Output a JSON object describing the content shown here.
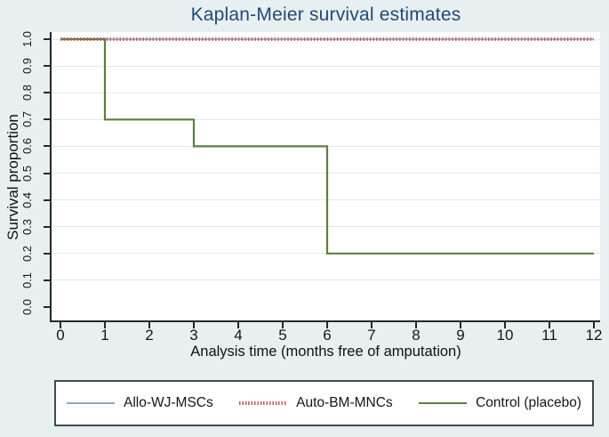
{
  "figure": {
    "background": "#e7eff1",
    "title": "Kaplan-Meier survival estimates",
    "title_color": "#234a73"
  },
  "chart_data": {
    "type": "line",
    "subtype": "kaplan-meier-step",
    "title": "Kaplan-Meier survival estimates",
    "xlabel": "Analysis time (months free of amputation)",
    "ylabel": "Survival proportion",
    "xlim": [
      0,
      12
    ],
    "ylim": [
      0.0,
      1.0
    ],
    "x_ticks": [
      "0",
      "1",
      "2",
      "3",
      "4",
      "5",
      "6",
      "7",
      "8",
      "9",
      "10",
      "11",
      "12"
    ],
    "y_ticks": [
      "0.0",
      "0.1",
      "0.2",
      "0.3",
      "0.4",
      "0.5",
      "0.6",
      "0.7",
      "0.8",
      "0.9",
      "1.0"
    ],
    "grid": "horizontal",
    "legend_position": "bottom",
    "series": [
      {
        "name": "Allo-WJ-MSCs",
        "style": "solid",
        "color": "#91a8bb",
        "points": [
          [
            0,
            1.0
          ],
          [
            12,
            1.0
          ]
        ]
      },
      {
        "name": "Auto-BM-MNCs",
        "style": "dotted",
        "color": "#bf5a5f",
        "points": [
          [
            0,
            1.0
          ],
          [
            12,
            1.0
          ]
        ]
      },
      {
        "name": "Control (placebo)",
        "style": "solid",
        "color": "#5e7e40",
        "points": [
          [
            0,
            1.0
          ],
          [
            1,
            1.0
          ],
          [
            1,
            0.7
          ],
          [
            3,
            0.7
          ],
          [
            3,
            0.6
          ],
          [
            6,
            0.6
          ],
          [
            6,
            0.2
          ],
          [
            12,
            0.2
          ]
        ]
      }
    ],
    "colors": {
      "axis": "#24282b",
      "grid": "#dfeaee",
      "tick_text": "#161616",
      "plot_bg": "#ffffff",
      "legend_border": "#434a4f",
      "legend_bg": "#fefefe"
    }
  }
}
